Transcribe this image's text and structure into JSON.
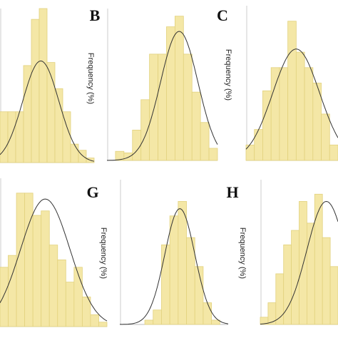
{
  "chart_data": [
    {
      "type": "histogram",
      "bins": [
        0,
        1,
        2,
        3,
        4,
        5,
        6,
        7,
        8,
        9,
        10,
        11,
        12
      ],
      "values": [
        33,
        33,
        33,
        63,
        93,
        100,
        65,
        48,
        33,
        12,
        8,
        3
      ],
      "xlim": [
        0,
        12
      ],
      "ylim": [
        0,
        100
      ],
      "color": "#f4e7a6",
      "fit": {
        "mean": 5.2,
        "sd": 2.3,
        "peak": 66
      }
    },
    {
      "type": "histogram",
      "title": "B",
      "ylabel": "Frequency (%)",
      "bins": [
        0,
        1,
        2,
        3,
        4,
        5,
        6,
        7,
        8,
        9,
        10,
        11,
        12,
        13
      ],
      "values": [
        0,
        6,
        5,
        20,
        40,
        70,
        70,
        88,
        95,
        70,
        45,
        25,
        8
      ],
      "xlim": [
        0,
        13
      ],
      "ylim": [
        0,
        100
      ],
      "color": "#f4e7a6",
      "fit": {
        "mean": 8.5,
        "sd": 2.2,
        "peak": 85
      }
    },
    {
      "type": "histogram",
      "title": "C",
      "ylabel": "Frequency (%)",
      "bins": [
        0,
        1,
        2,
        3,
        4,
        5,
        6,
        7,
        8,
        9,
        10,
        11
      ],
      "values": [
        10,
        20,
        45,
        60,
        60,
        90,
        70,
        60,
        50,
        30,
        10
      ],
      "xlim": [
        0,
        11
      ],
      "ylim": [
        0,
        100
      ],
      "color": "#f4e7a6",
      "fit": {
        "mean": 6,
        "sd": 2.8,
        "peak": 72
      }
    },
    {
      "type": "histogram",
      "bins": [
        0,
        1,
        2,
        3,
        4,
        5,
        6,
        7,
        8,
        9,
        10,
        11,
        12,
        13
      ],
      "values": [
        40,
        48,
        90,
        90,
        75,
        78,
        55,
        45,
        30,
        40,
        20,
        8,
        3
      ],
      "xlim": [
        0,
        13
      ],
      "ylim": [
        0,
        100
      ],
      "color": "#f4e7a6",
      "fit": {
        "mean": 5.5,
        "sd": 3,
        "peak": 86
      }
    },
    {
      "type": "histogram",
      "title": "G",
      "ylabel": "Frequency (%)",
      "bins": [
        0,
        1,
        2,
        3,
        4,
        5,
        6,
        7,
        8,
        9,
        10,
        11,
        12,
        13
      ],
      "values": [
        0,
        0,
        0,
        3,
        10,
        55,
        75,
        85,
        60,
        40,
        15,
        3,
        0
      ],
      "xlim": [
        0,
        13
      ],
      "ylim": [
        0,
        100
      ],
      "color": "#f4e7a6",
      "fit": {
        "mean": 7.2,
        "sd": 1.8,
        "peak": 80
      }
    },
    {
      "type": "histogram",
      "title": "H",
      "ylabel": "Frequency (%)",
      "bins": [
        0,
        1,
        2,
        3,
        4,
        5,
        6,
        7,
        8,
        9,
        10
      ],
      "values": [
        5,
        15,
        35,
        55,
        65,
        85,
        70,
        90,
        60,
        40
      ],
      "xlim": [
        0,
        10
      ],
      "ylim": [
        0,
        100
      ],
      "color": "#f4e7a6",
      "fit": {
        "mean": 8.5,
        "sd": 2.5,
        "peak": 85
      }
    }
  ]
}
